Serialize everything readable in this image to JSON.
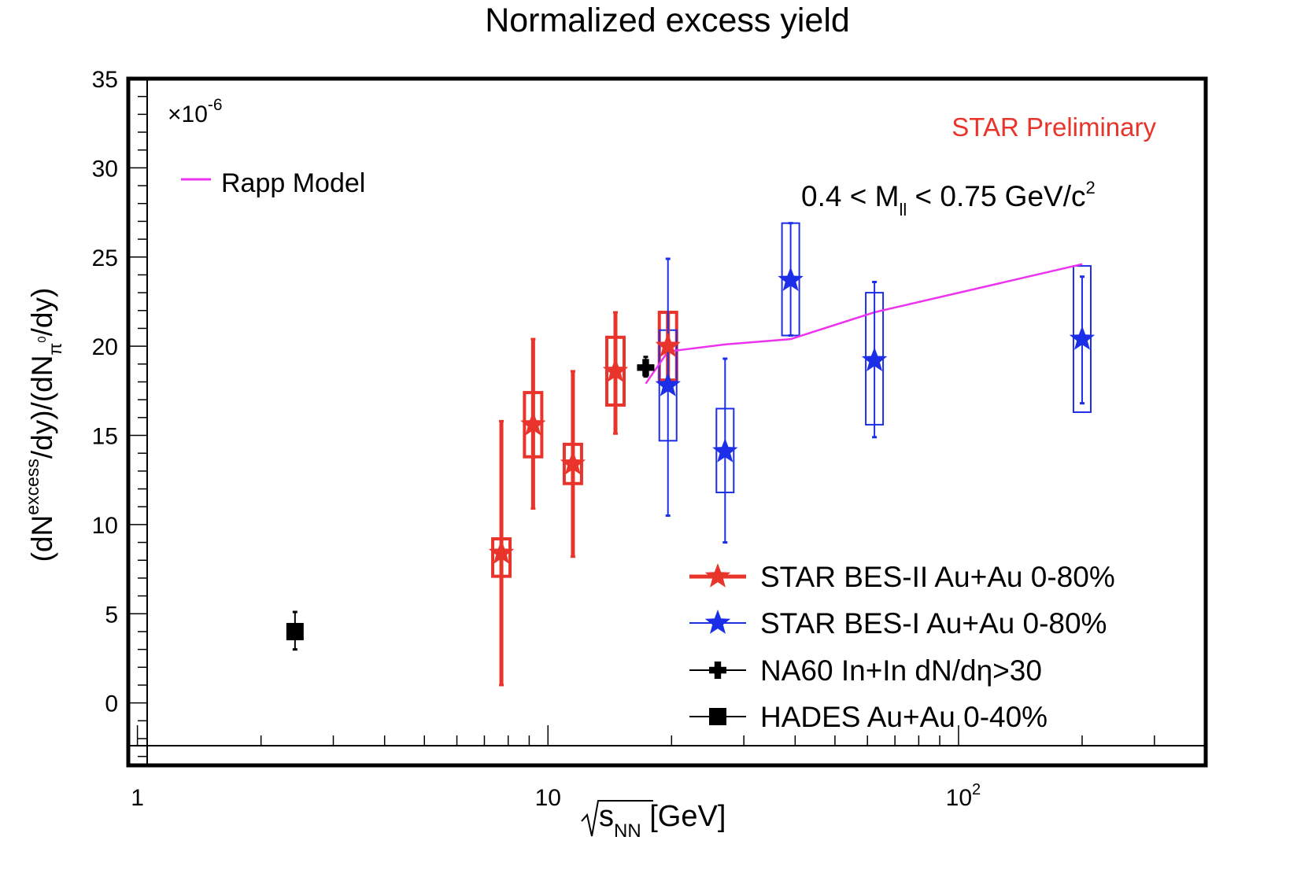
{
  "chart_data": {
    "type": "scatter",
    "title": "Normalized excess yield",
    "xlabel_main": "s",
    "xlabel_sub": "NN",
    "xlabel_unit": "[GeV]",
    "ylabel_parts": [
      "(dN",
      "excess",
      "/dy)/(dN",
      "π",
      "0",
      "/dy)"
    ],
    "multiplier_prefix": "×10",
    "multiplier_exp": "-6",
    "watermark": "STAR Preliminary",
    "watermark_color": "#e8342b",
    "mass_range": {
      "prefix": "0.4 < M",
      "sub": "ll",
      "middle": " < 0.75 GeV/c",
      "sup": "2"
    },
    "x_scale": "log",
    "xlim": [
      0.95,
      400
    ],
    "ylim": [
      -3.5,
      35
    ],
    "y_ticks": [
      0,
      5,
      10,
      15,
      20,
      25,
      30,
      35
    ],
    "x_tick_labels": [
      {
        "x": 1,
        "text": "1",
        "sup": ""
      },
      {
        "x": 10,
        "text": "10",
        "sup": ""
      },
      {
        "x": 100,
        "text": "10",
        "sup": "2"
      }
    ],
    "model": {
      "name": "Rapp Model",
      "color": "#ee33ee",
      "x": [
        17.3,
        19.6,
        27,
        39,
        62.4,
        200
      ],
      "y": [
        17.9,
        19.7,
        20.1,
        20.4,
        21.9,
        24.6
      ]
    },
    "series": [
      {
        "name": "STAR BES-II Au+Au 0-80%",
        "color": "#e8342b",
        "marker": "star",
        "points": [
          {
            "x": 7.7,
            "y": 8.4,
            "err_lo": 7.4,
            "err_hi": 7.4,
            "sys_lo": 1.3,
            "sys_hi": 0.8
          },
          {
            "x": 9.2,
            "y": 15.6,
            "err_lo": 4.7,
            "err_hi": 4.8,
            "sys_lo": 1.8,
            "sys_hi": 1.8
          },
          {
            "x": 11.5,
            "y": 13.4,
            "err_lo": 5.2,
            "err_hi": 5.2,
            "sys_lo": 1.1,
            "sys_hi": 1.1
          },
          {
            "x": 14.6,
            "y": 18.6,
            "err_lo": 3.5,
            "err_hi": 3.3,
            "sys_lo": 1.9,
            "sys_hi": 1.9
          },
          {
            "x": 19.6,
            "y": 20.0,
            "err_lo": 2.3,
            "err_hi": 1.9,
            "sys_lo": 1.9,
            "sys_hi": 1.9
          }
        ]
      },
      {
        "name": "STAR BES-I Au+Au 0-80%",
        "color": "#1d2ee8",
        "marker": "star",
        "points": [
          {
            "x": 19.6,
            "y": 17.8,
            "err_lo": 7.3,
            "err_hi": 7.1,
            "sys_lo": 3.1,
            "sys_hi": 3.1
          },
          {
            "x": 27,
            "y": 14.1,
            "err_lo": 5.1,
            "err_hi": 5.2,
            "sys_lo": 2.3,
            "sys_hi": 2.4
          },
          {
            "x": 39,
            "y": 23.7,
            "err_lo": 3.1,
            "err_hi": 3.2,
            "sys_lo": 3.1,
            "sys_hi": 3.2
          },
          {
            "x": 62.4,
            "y": 19.2,
            "err_lo": 4.3,
            "err_hi": 4.4,
            "sys_lo": 3.6,
            "sys_hi": 3.8
          },
          {
            "x": 200,
            "y": 20.4,
            "err_lo": 3.6,
            "err_hi": 3.5,
            "sys_lo": 4.1,
            "sys_hi": 4.1
          }
        ]
      },
      {
        "name": "NA60 In+In dN/dη>30",
        "color": "#000000",
        "marker": "cross",
        "points": [
          {
            "x": 17.3,
            "y": 18.8,
            "err_lo": 0.5,
            "err_hi": 0.6
          }
        ]
      },
      {
        "name": "HADES Au+Au 0-40%",
        "color": "#000000",
        "marker": "square",
        "points": [
          {
            "x": 2.42,
            "y": 4.0,
            "err_lo": 1.0,
            "err_hi": 1.1
          }
        ]
      }
    ],
    "grid": false,
    "legend_position": "bottom-right"
  }
}
